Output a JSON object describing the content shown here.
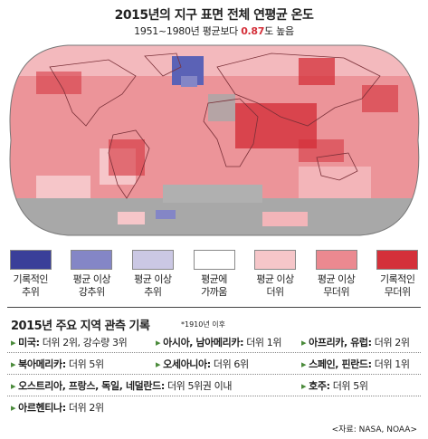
{
  "header": {
    "title": "2015년의 지구 표면 전체 연평균 온도",
    "subtitle": {
      "before": "1951~1980년 평균보다",
      "highlight": "0.87",
      "after": "도 높음"
    }
  },
  "legend": [
    {
      "lines": [
        "기록적인",
        "추위"
      ],
      "color": "#3a3f99"
    },
    {
      "lines": [
        "평균 이상",
        "강추위"
      ],
      "color": "#8486c6"
    },
    {
      "lines": [
        "평균 이상",
        "추위"
      ],
      "color": "#cbc8e4"
    },
    {
      "lines": [
        "평균에",
        "가까움"
      ],
      "color": "#ffffff"
    },
    {
      "lines": [
        "평균 이상",
        "더위"
      ],
      "color": "#f6c6c9"
    },
    {
      "lines": [
        "평균 이상",
        "무더위"
      ],
      "color": "#eb8990"
    },
    {
      "lines": [
        "기록적인",
        "무더위"
      ],
      "color": "#d4303a"
    }
  ],
  "records": {
    "title": "2015년 주요 지역 관측 기록",
    "note": "*1910년 이후",
    "rows": [
      [
        {
          "region": "미국:",
          "detail": "더위 2위, 강수량 3위"
        },
        {
          "region": "아시아, 남아메리카:",
          "detail": "더위 1위"
        },
        {
          "region": "아프리카, 유럽:",
          "detail": "더위 2위"
        }
      ],
      [
        {
          "region": "북아메리카:",
          "detail": "더위 5위"
        },
        {
          "region": "오세아니아:",
          "detail": "더위 6위"
        },
        {
          "region": "스페인, 핀란드:",
          "detail": "더위 1위"
        }
      ],
      [
        {
          "region": "오스트리아, 프랑스, 독일, 네덜란드:",
          "detail": "더위 5위권 이내"
        },
        {
          "region": "호주:",
          "detail": "더위 5위"
        }
      ],
      [
        {
          "region": "아르헨티나:",
          "detail": "더위 2위"
        }
      ]
    ]
  },
  "source": "<자료: NASA, NOAA>"
}
